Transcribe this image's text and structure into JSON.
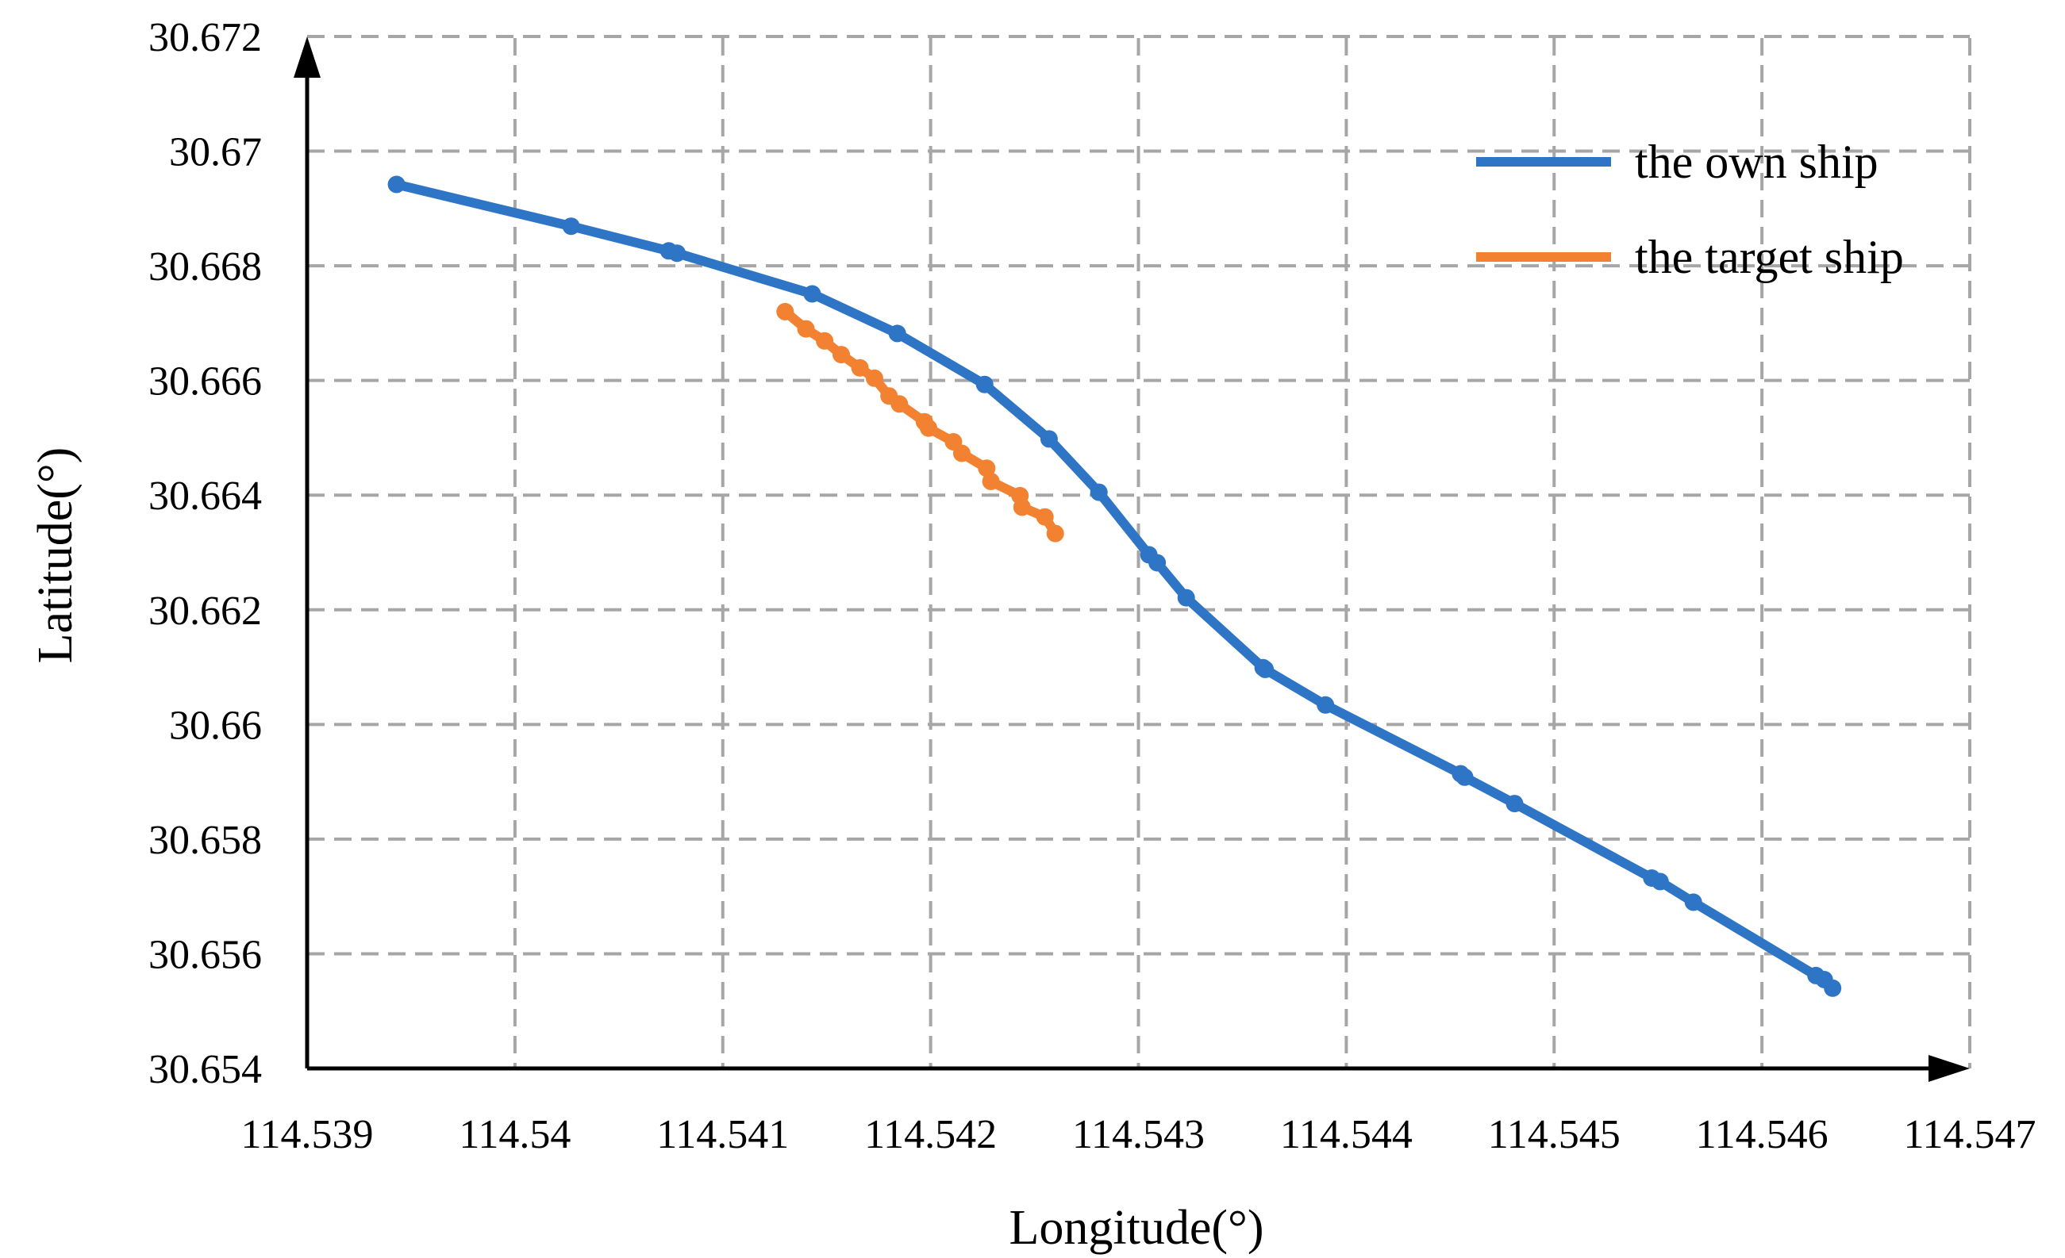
{
  "chart_data": {
    "type": "line",
    "xlabel": "Longitude(°)",
    "ylabel": "Latitude(°)",
    "xlim": [
      114.539,
      114.547
    ],
    "ylim": [
      30.654,
      30.672
    ],
    "x_ticks": [
      "114.539",
      "114.54",
      "114.541",
      "114.542",
      "114.543",
      "114.544",
      "114.545",
      "114.546",
      "114.547"
    ],
    "y_ticks": [
      "30.654",
      "30.656",
      "30.658",
      "30.66",
      "30.662",
      "30.664",
      "30.666",
      "30.668",
      "30.67",
      "30.672"
    ],
    "grid": true,
    "legend_position": "top-right",
    "series": [
      {
        "name": "the own ship",
        "color": "#2e75c6",
        "points": [
          [
            114.53943,
            30.66942
          ],
          [
            114.54027,
            30.66869
          ],
          [
            114.54074,
            30.66826
          ],
          [
            114.54078,
            30.66822
          ],
          [
            114.54143,
            30.66751
          ],
          [
            114.54184,
            30.66682
          ],
          [
            114.54226,
            30.66593
          ],
          [
            114.54257,
            30.66498
          ],
          [
            114.54281,
            30.66405
          ],
          [
            114.54305,
            30.66296
          ],
          [
            114.54309,
            30.66282
          ],
          [
            114.54323,
            30.66221
          ],
          [
            114.5436,
            30.66099
          ],
          [
            114.54361,
            30.66096
          ],
          [
            114.5439,
            30.66034
          ],
          [
            114.54455,
            30.65914
          ],
          [
            114.54457,
            30.65908
          ],
          [
            114.54481,
            30.65862
          ],
          [
            114.54547,
            30.65732
          ],
          [
            114.54551,
            30.65726
          ],
          [
            114.54567,
            30.6569
          ],
          [
            114.54626,
            30.65562
          ],
          [
            114.5463,
            30.65555
          ],
          [
            114.54634,
            30.6554
          ]
        ]
      },
      {
        "name": "the target ship",
        "color": "#f28231",
        "points": [
          [
            114.5413,
            30.6672
          ],
          [
            114.5414,
            30.6669
          ],
          [
            114.54149,
            30.66669
          ],
          [
            114.54157,
            30.66645
          ],
          [
            114.54166,
            30.66622
          ],
          [
            114.54173,
            30.66604
          ],
          [
            114.5418,
            30.66573
          ],
          [
            114.54185,
            30.66559
          ],
          [
            114.54197,
            30.66528
          ],
          [
            114.54199,
            30.66517
          ],
          [
            114.54211,
            30.66493
          ],
          [
            114.54215,
            30.66473
          ],
          [
            114.54227,
            30.66447
          ],
          [
            114.54229,
            30.66424
          ],
          [
            114.54243,
            30.66399
          ],
          [
            114.54244,
            30.66379
          ],
          [
            114.54255,
            30.66362
          ],
          [
            114.5426,
            30.66333
          ]
        ]
      }
    ]
  }
}
